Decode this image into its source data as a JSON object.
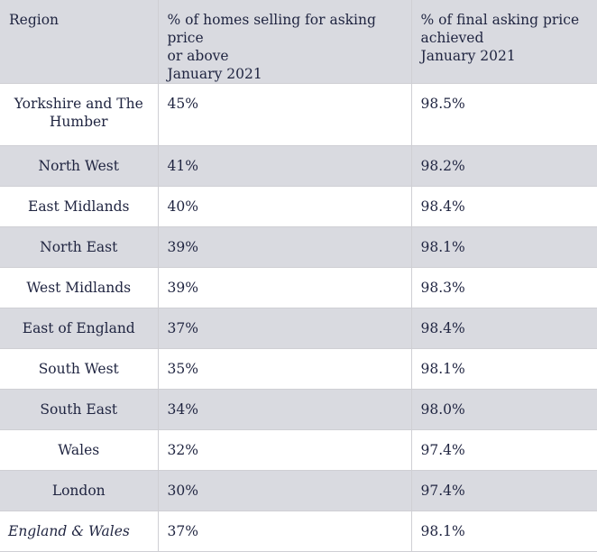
{
  "headers": {
    "region": "Region",
    "pct_homes": [
      "% of homes selling for asking price",
      "or above",
      "January 2021"
    ],
    "pct_final": [
      "% of final asking price",
      "achieved",
      "January 2021"
    ]
  },
  "rows": [
    {
      "region": "Yorkshire and The Humber",
      "pct_homes": "45%",
      "pct_final": "98.5%"
    },
    {
      "region": "North West",
      "pct_homes": "41%",
      "pct_final": "98.2%"
    },
    {
      "region": "East Midlands",
      "pct_homes": "40%",
      "pct_final": "98.4%"
    },
    {
      "region": "North East",
      "pct_homes": "39%",
      "pct_final": "98.1%"
    },
    {
      "region": "West Midlands",
      "pct_homes": "39%",
      "pct_final": "98.3%"
    },
    {
      "region": "East of England",
      "pct_homes": "37%",
      "pct_final": "98.4%"
    },
    {
      "region": "South West",
      "pct_homes": "35%",
      "pct_final": "98.1%"
    },
    {
      "region": "South East",
      "pct_homes": "34%",
      "pct_final": "98.0%"
    },
    {
      "region": "Wales",
      "pct_homes": "32%",
      "pct_final": "97.4%"
    },
    {
      "region": "London",
      "pct_homes": "30%",
      "pct_final": "97.4%"
    },
    {
      "region": "England & Wales",
      "pct_homes": "37%",
      "pct_final": "98.1%"
    }
  ]
}
